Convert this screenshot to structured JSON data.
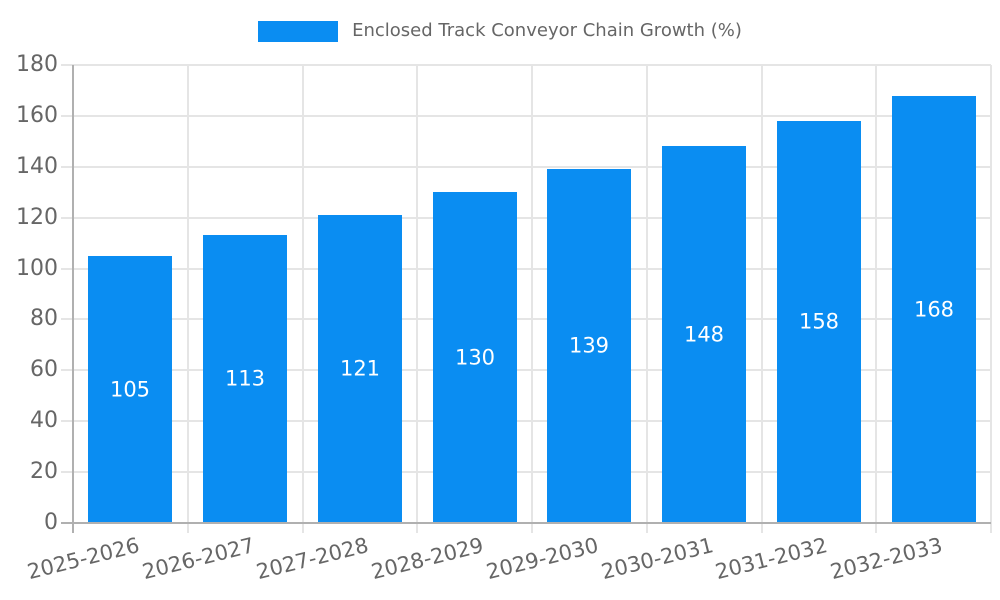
{
  "chart_data": {
    "type": "bar",
    "title": "",
    "legend_label": "Enclosed Track Conveyor Chain Growth (%)",
    "legend_position": "top",
    "categories": [
      "2025-2026",
      "2026-2027",
      "2027-2028",
      "2028-2029",
      "2029-2030",
      "2030-2031",
      "2031-2032",
      "2032-2033"
    ],
    "values": [
      105,
      113,
      121,
      130,
      139,
      148,
      158,
      168
    ],
    "xlabel": "",
    "ylabel": "",
    "ylim": [
      0,
      180
    ],
    "yticks": [
      0,
      20,
      40,
      60,
      80,
      100,
      120,
      140,
      160,
      180
    ],
    "grid": true,
    "x_label_rotation_deg": -14,
    "colors": {
      "bar": "#0a8df2",
      "value_label": "#ffffff",
      "grid": "#e5e5e5",
      "axis": "#b0b0b0",
      "tick_label": "#666666",
      "legend_label": "#666666",
      "background": "#ffffff"
    }
  }
}
